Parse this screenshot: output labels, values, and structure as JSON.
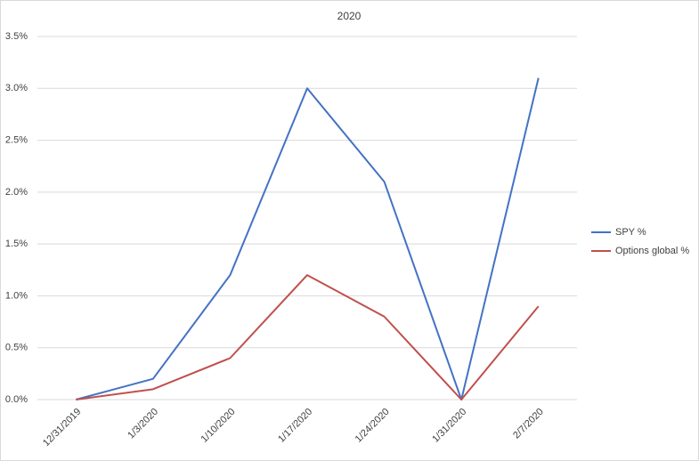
{
  "chart_data": {
    "type": "line",
    "title": "2020",
    "categories": [
      "12/31/2019",
      "1/3/2020",
      "1/10/2020",
      "1/17/2020",
      "1/24/2020",
      "1/31/2020",
      "2/7/2020"
    ],
    "series": [
      {
        "name": "SPY %",
        "color": "#4472c4",
        "values": [
          0,
          0.2,
          1.2,
          3.0,
          2.1,
          0,
          3.1
        ]
      },
      {
        "name": "Options global %",
        "color": "#c0504d",
        "values": [
          0,
          0.1,
          0.4,
          1.2,
          0.8,
          0,
          0.9
        ]
      }
    ],
    "ylim": [
      0,
      3.5
    ],
    "yticks": [
      {
        "value": 0,
        "label": "0.0%"
      },
      {
        "value": 0.5,
        "label": "0.5%"
      },
      {
        "value": 1,
        "label": "1.0%"
      },
      {
        "value": 1.5,
        "label": "1.5%"
      },
      {
        "value": 2,
        "label": "2.0%"
      },
      {
        "value": 2.5,
        "label": "2.5%"
      },
      {
        "value": 3,
        "label": "3.0%"
      },
      {
        "value": 3.5,
        "label": "3.5%"
      }
    ],
    "grid": true,
    "legend": "right"
  }
}
